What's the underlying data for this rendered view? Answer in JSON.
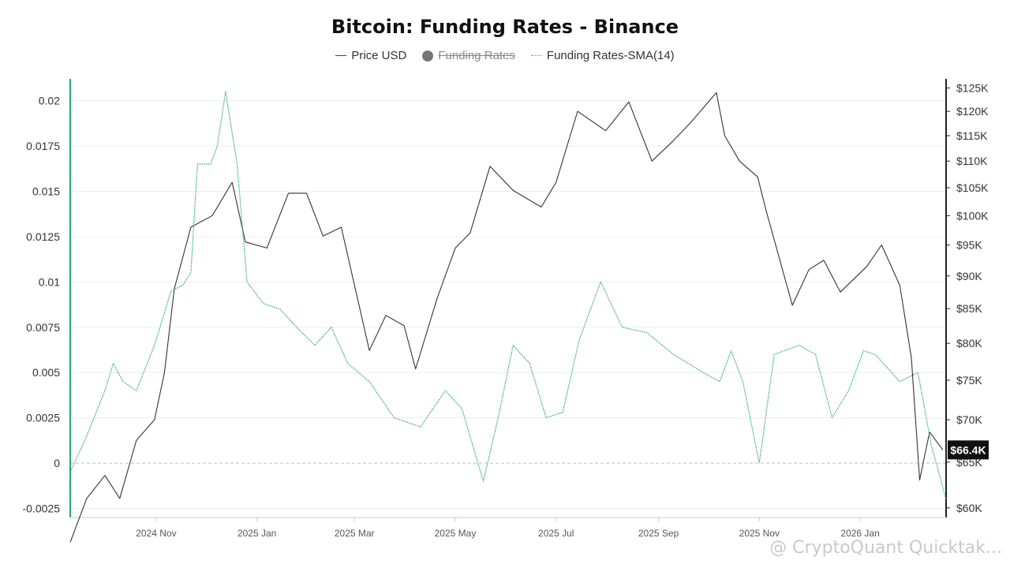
{
  "chart_data": {
    "type": "line",
    "title": "Bitcoin: Funding Rates - Binance",
    "legend": [
      {
        "name": "Price USD",
        "style": "line",
        "color": "#444444",
        "hidden": false
      },
      {
        "name": "Funding Rates",
        "style": "dot",
        "color": "#777777",
        "hidden": true
      },
      {
        "name": "Funding Rates-SMA(14)",
        "style": "dotted",
        "color": "#2aa86a",
        "hidden": false
      }
    ],
    "x_ticks": [
      "2024 Nov",
      "2025 Jan",
      "2025 Mar",
      "2025 May",
      "2025 Jul",
      "2025 Sep",
      "2025 Nov",
      "2026 Jan"
    ],
    "y_left": {
      "ticks": [
        "0.02",
        "0.0175",
        "0.015",
        "0.0125",
        "0.01",
        "0.0075",
        "0.005",
        "0.0025",
        "0",
        "-0.0025"
      ],
      "ylim": [
        -0.003,
        0.0212
      ],
      "zero_line": true
    },
    "y_right": {
      "ticks": [
        "$125K",
        "$120K",
        "$115K",
        "$110K",
        "$105K",
        "$100K",
        "$95K",
        "$90K",
        "$85K",
        "$80K",
        "$75K",
        "$70K",
        "$65K",
        "$60K"
      ],
      "scale": "log",
      "ylim": [
        59000,
        127000
      ]
    },
    "current_price_label": "$66.4K",
    "x_range": [
      "2024-09-10",
      "2026-02-22"
    ],
    "series": [
      {
        "name": "Price USD",
        "axis": "right",
        "color": "#333333",
        "x": [
          "2024-09-10",
          "2024-09-20",
          "2024-10-01",
          "2024-10-10",
          "2024-10-20",
          "2024-10-31",
          "2024-11-06",
          "2024-11-12",
          "2024-11-22",
          "2024-12-05",
          "2024-12-17",
          "2024-12-25",
          "2025-01-07",
          "2025-01-20",
          "2025-01-31",
          "2025-02-10",
          "2025-02-21",
          "2025-03-10",
          "2025-03-20",
          "2025-03-31",
          "2025-04-07",
          "2025-04-20",
          "2025-05-01",
          "2025-05-10",
          "2025-05-22",
          "2025-06-05",
          "2025-06-22",
          "2025-07-01",
          "2025-07-14",
          "2025-07-31",
          "2025-08-14",
          "2025-08-28",
          "2025-09-10",
          "2025-09-20",
          "2025-10-06",
          "2025-10-11",
          "2025-10-20",
          "2025-10-31",
          "2025-11-05",
          "2025-11-21",
          "2025-12-01",
          "2025-12-10",
          "2025-12-20",
          "2026-01-05",
          "2026-01-14",
          "2026-01-25",
          "2026-02-01",
          "2026-02-06",
          "2026-02-12",
          "2026-02-20"
        ],
        "y": [
          56500,
          61000,
          63500,
          61000,
          67500,
          70000,
          76000,
          88000,
          98000,
          100000,
          106000,
          95500,
          94500,
          104000,
          104000,
          96500,
          98000,
          79000,
          84000,
          82500,
          76500,
          86500,
          94500,
          97000,
          109000,
          104500,
          101500,
          106000,
          120000,
          116000,
          122000,
          110000,
          114000,
          117500,
          124000,
          115000,
          110000,
          107000,
          101000,
          85500,
          91000,
          92500,
          87500,
          91500,
          95000,
          88500,
          78000,
          63000,
          68500,
          66400
        ]
      },
      {
        "name": "Funding Rates-SMA(14)",
        "axis": "left",
        "color": "#2aa86a",
        "x": [
          "2024-09-10",
          "2024-09-20",
          "2024-10-01",
          "2024-10-06",
          "2024-10-12",
          "2024-10-20",
          "2024-10-31",
          "2024-11-10",
          "2024-11-17",
          "2024-11-22",
          "2024-11-26",
          "2024-12-04",
          "2024-12-08",
          "2024-12-13",
          "2024-12-20",
          "2024-12-26",
          "2025-01-05",
          "2025-01-15",
          "2025-01-25",
          "2025-02-05",
          "2025-02-15",
          "2025-02-25",
          "2025-03-10",
          "2025-03-25",
          "2025-04-10",
          "2025-04-25",
          "2025-05-05",
          "2025-05-18",
          "2025-05-27",
          "2025-06-05",
          "2025-06-15",
          "2025-06-25",
          "2025-07-05",
          "2025-07-15",
          "2025-07-28",
          "2025-08-10",
          "2025-08-25",
          "2025-09-10",
          "2025-09-28",
          "2025-10-08",
          "2025-10-15",
          "2025-10-22",
          "2025-11-01",
          "2025-11-10",
          "2025-11-25",
          "2025-12-05",
          "2025-12-15",
          "2025-12-25",
          "2026-01-03",
          "2026-01-10",
          "2026-01-25",
          "2026-02-05",
          "2026-02-13",
          "2026-02-22"
        ],
        "y": [
          -0.0005,
          0.0015,
          0.004,
          0.0055,
          0.0045,
          0.004,
          0.0065,
          0.0095,
          0.0098,
          0.0105,
          0.0165,
          0.0165,
          0.0175,
          0.0205,
          0.0165,
          0.01,
          0.0088,
          0.0085,
          0.0075,
          0.0065,
          0.0075,
          0.0055,
          0.0045,
          0.0025,
          0.002,
          0.004,
          0.003,
          -0.001,
          0.0025,
          0.0065,
          0.0055,
          0.0025,
          0.0028,
          0.0068,
          0.01,
          0.0075,
          0.0072,
          0.006,
          0.005,
          0.0045,
          0.0062,
          0.0045,
          0.0,
          0.006,
          0.0065,
          0.006,
          0.0025,
          0.004,
          0.0062,
          0.006,
          0.0045,
          0.005,
          0.001,
          -0.002
        ]
      }
    ]
  },
  "watermark": "@ CryptoQuant Quicktak..."
}
